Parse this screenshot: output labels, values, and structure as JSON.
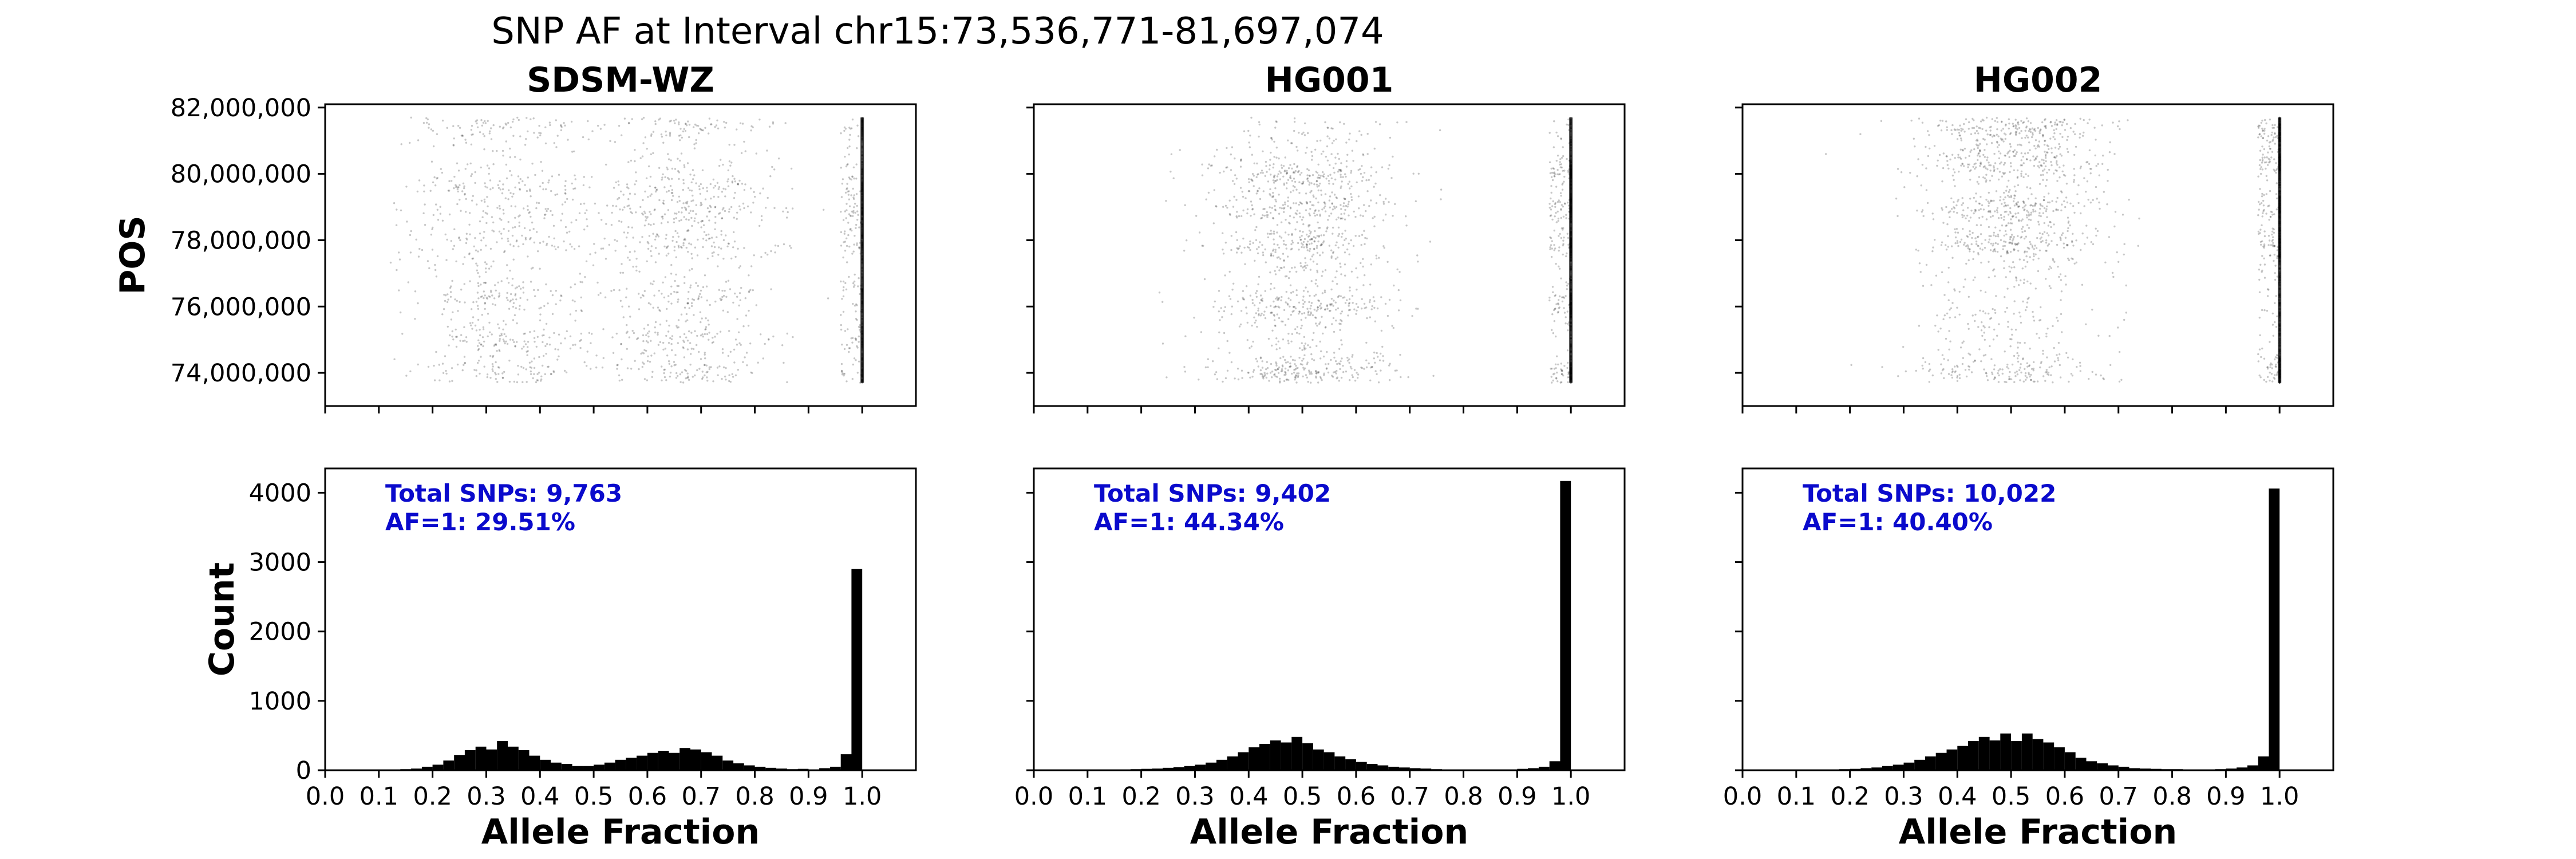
{
  "figure": {
    "title": "SNP AF at Interval chr15:73,536,771-81,697,074"
  },
  "chart_data": [
    {
      "type": "scatter",
      "sample": "SDSM-WZ",
      "title": "SDSM-WZ",
      "xlabel": "",
      "ylabel": "POS",
      "xlim": [
        0,
        1.1
      ],
      "ylim": [
        73000000,
        82100000
      ],
      "yticks": [
        74000000,
        76000000,
        78000000,
        80000000,
        82000000
      ],
      "ytick_labels": [
        "74,000,000",
        "76,000,000",
        "78,000,000",
        "80,000,000",
        "82,000,000"
      ],
      "point_color": "#000000",
      "density_profile": {
        "af_modes": [
          0.33,
          0.67,
          1.0
        ],
        "pos_bands": [
          74000000,
          75000000,
          76300000,
          77900000,
          78800000,
          79600000,
          81500000
        ]
      }
    },
    {
      "type": "scatter",
      "sample": "HG001",
      "title": "HG001",
      "xlabel": "",
      "ylabel": "",
      "xlim": [
        0,
        1.1
      ],
      "ylim": [
        73000000,
        82100000
      ],
      "yticks": [
        74000000,
        76000000,
        78000000,
        80000000,
        82000000
      ],
      "point_color": "#000000",
      "density_profile": {
        "af_modes": [
          0.5,
          1.0
        ],
        "pos_bands": [
          74000000,
          76000000,
          77900000,
          79000000,
          80000000
        ]
      }
    },
    {
      "type": "scatter",
      "sample": "HG002",
      "title": "HG002",
      "xlabel": "",
      "ylabel": "",
      "xlim": [
        0,
        1.1
      ],
      "ylim": [
        73000000,
        82100000
      ],
      "yticks": [
        74000000,
        76000000,
        78000000,
        80000000,
        82000000
      ],
      "point_color": "#000000",
      "density_profile": {
        "af_modes": [
          0.5,
          1.0
        ],
        "pos_bands": [
          74000000,
          77900000,
          79000000,
          80300000,
          81300000
        ]
      }
    },
    {
      "type": "bar",
      "sample": "SDSM-WZ",
      "xlabel": "Allele Fraction",
      "ylabel": "Count",
      "xlim": [
        0,
        1.1
      ],
      "ylim": [
        0,
        4350
      ],
      "xticks": [
        0.0,
        0.1,
        0.2,
        0.3,
        0.4,
        0.5,
        0.6,
        0.7,
        0.8,
        0.9,
        1.0
      ],
      "xtick_labels": [
        "0.0",
        "0.1",
        "0.2",
        "0.3",
        "0.4",
        "0.5",
        "0.6",
        "0.7",
        "0.8",
        "0.9",
        "1.0"
      ],
      "yticks": [
        0,
        1000,
        2000,
        3000,
        4000
      ],
      "ytick_labels": [
        "0",
        "1000",
        "2000",
        "3000",
        "4000"
      ],
      "bin_width": 0.02,
      "bin_starts": [
        0.1,
        0.12,
        0.14,
        0.16,
        0.18,
        0.2,
        0.22,
        0.24,
        0.26,
        0.28,
        0.3,
        0.32,
        0.34,
        0.36,
        0.38,
        0.4,
        0.42,
        0.44,
        0.46,
        0.48,
        0.5,
        0.52,
        0.54,
        0.56,
        0.58,
        0.6,
        0.62,
        0.64,
        0.66,
        0.68,
        0.7,
        0.72,
        0.74,
        0.76,
        0.78,
        0.8,
        0.82,
        0.84,
        0.86,
        0.88,
        0.9,
        0.92,
        0.94,
        0.96,
        0.98
      ],
      "counts": [
        5,
        10,
        15,
        25,
        50,
        80,
        140,
        220,
        290,
        340,
        300,
        420,
        340,
        290,
        210,
        150,
        110,
        90,
        60,
        60,
        80,
        110,
        150,
        180,
        210,
        250,
        280,
        250,
        320,
        300,
        260,
        210,
        140,
        100,
        70,
        50,
        35,
        25,
        15,
        20,
        10,
        30,
        50,
        230,
        2900
      ],
      "annotation": [
        "Total SNPs: 9,763",
        "AF=1: 29.51%"
      ],
      "annotation_color": "#0a0acc"
    },
    {
      "type": "bar",
      "sample": "HG001",
      "xlabel": "Allele Fraction",
      "ylabel": "",
      "xlim": [
        0,
        1.1
      ],
      "ylim": [
        0,
        4350
      ],
      "xticks": [
        0.0,
        0.1,
        0.2,
        0.3,
        0.4,
        0.5,
        0.6,
        0.7,
        0.8,
        0.9,
        1.0
      ],
      "xtick_labels": [
        "0.0",
        "0.1",
        "0.2",
        "0.3",
        "0.4",
        "0.5",
        "0.6",
        "0.7",
        "0.8",
        "0.9",
        "1.0"
      ],
      "yticks": [
        0,
        1000,
        2000,
        3000,
        4000
      ],
      "bin_width": 0.02,
      "bin_starts": [
        0.1,
        0.12,
        0.14,
        0.16,
        0.18,
        0.2,
        0.22,
        0.24,
        0.26,
        0.28,
        0.3,
        0.32,
        0.34,
        0.36,
        0.38,
        0.4,
        0.42,
        0.44,
        0.46,
        0.48,
        0.5,
        0.52,
        0.54,
        0.56,
        0.58,
        0.6,
        0.62,
        0.64,
        0.66,
        0.68,
        0.7,
        0.72,
        0.74,
        0.76,
        0.78,
        0.8,
        0.82,
        0.84,
        0.86,
        0.88,
        0.9,
        0.92,
        0.94,
        0.96,
        0.98
      ],
      "counts": [
        5,
        5,
        10,
        10,
        15,
        20,
        25,
        35,
        45,
        60,
        80,
        110,
        150,
        200,
        260,
        330,
        380,
        430,
        400,
        480,
        390,
        300,
        260,
        200,
        160,
        120,
        90,
        70,
        50,
        40,
        30,
        25,
        15,
        10,
        10,
        10,
        8,
        5,
        5,
        10,
        20,
        30,
        50,
        130,
        4170
      ],
      "annotation": [
        "Total SNPs: 9,402",
        "AF=1: 44.34%"
      ],
      "annotation_color": "#0a0acc"
    },
    {
      "type": "bar",
      "sample": "HG002",
      "xlabel": "Allele Fraction",
      "ylabel": "",
      "xlim": [
        0,
        1.1
      ],
      "ylim": [
        0,
        4350
      ],
      "xticks": [
        0.0,
        0.1,
        0.2,
        0.3,
        0.4,
        0.5,
        0.6,
        0.7,
        0.8,
        0.9,
        1.0
      ],
      "xtick_labels": [
        "0.0",
        "0.1",
        "0.2",
        "0.3",
        "0.4",
        "0.5",
        "0.6",
        "0.7",
        "0.8",
        "0.9",
        "1.0"
      ],
      "yticks": [
        0,
        1000,
        2000,
        3000,
        4000
      ],
      "bin_width": 0.02,
      "bin_starts": [
        0.1,
        0.12,
        0.14,
        0.16,
        0.18,
        0.2,
        0.22,
        0.24,
        0.26,
        0.28,
        0.3,
        0.32,
        0.34,
        0.36,
        0.38,
        0.4,
        0.42,
        0.44,
        0.46,
        0.48,
        0.5,
        0.52,
        0.54,
        0.56,
        0.58,
        0.6,
        0.62,
        0.64,
        0.66,
        0.68,
        0.7,
        0.72,
        0.74,
        0.76,
        0.78,
        0.8,
        0.82,
        0.84,
        0.86,
        0.88,
        0.9,
        0.92,
        0.94,
        0.96,
        0.98
      ],
      "counts": [
        5,
        5,
        10,
        10,
        15,
        20,
        30,
        40,
        60,
        80,
        110,
        150,
        200,
        250,
        300,
        350,
        420,
        480,
        430,
        530,
        420,
        530,
        450,
        400,
        330,
        260,
        180,
        130,
        100,
        70,
        50,
        30,
        25,
        20,
        15,
        15,
        10,
        10,
        10,
        15,
        25,
        40,
        70,
        200,
        4060
      ],
      "annotation": [
        "Total SNPs: 10,022",
        "AF=1: 40.40%"
      ],
      "annotation_color": "#0a0acc"
    }
  ]
}
